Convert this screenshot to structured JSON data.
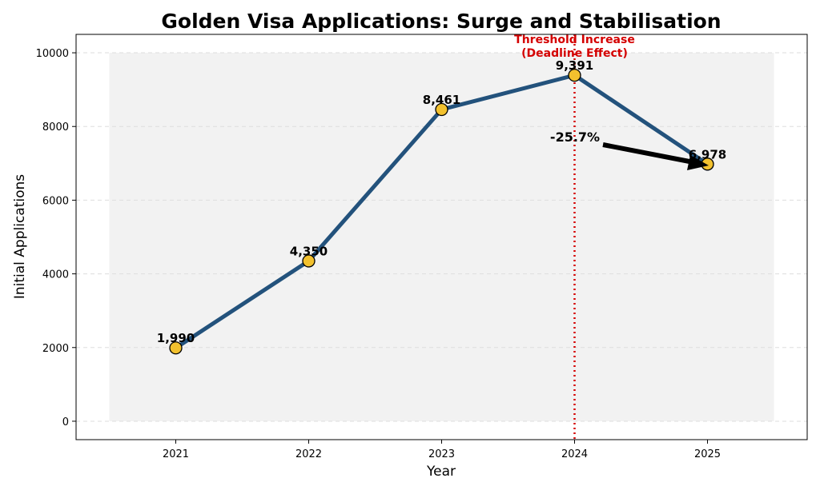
{
  "chart_data": {
    "type": "line",
    "title": "Golden Visa Applications: Surge and Stabilisation",
    "xlabel": "Year",
    "ylabel": "Initial Applications",
    "categories": [
      "2021",
      "2022",
      "2023",
      "2024",
      "2025"
    ],
    "x": [
      2021,
      2022,
      2023,
      2024,
      2025
    ],
    "values": [
      1990,
      4350,
      8461,
      9391,
      6978
    ],
    "data_labels": [
      "1,990",
      "4,350",
      "8,461",
      "9,391",
      "6,978"
    ],
    "yticks": [
      0,
      2000,
      4000,
      6000,
      8000,
      10000
    ],
    "ytick_labels": [
      "0",
      "2000",
      "4000",
      "6000",
      "8000",
      "10000"
    ],
    "xlim": [
      2020.25,
      2025.75
    ],
    "ylim": [
      -500,
      10500
    ],
    "grid": "horizontal dashed",
    "shaded_region": {
      "x": [
        2020.5,
        2025.5
      ],
      "y": [
        0,
        10000
      ]
    },
    "vline": {
      "x": 2024,
      "label": "Threshold Increase\n(Deadline Effect)",
      "label_lines": [
        "Threshold Increase",
        "(Deadline Effect)"
      ],
      "color": "#d40000"
    },
    "annotation": {
      "text": "-25.7%",
      "points_to_x": 2025,
      "points_to_y": 6978
    },
    "colors": {
      "line": "#23527c",
      "marker": "#f2c12e",
      "marker_edge": "#000000",
      "shade": "#f2f2f2",
      "vline": "#d40000"
    }
  }
}
